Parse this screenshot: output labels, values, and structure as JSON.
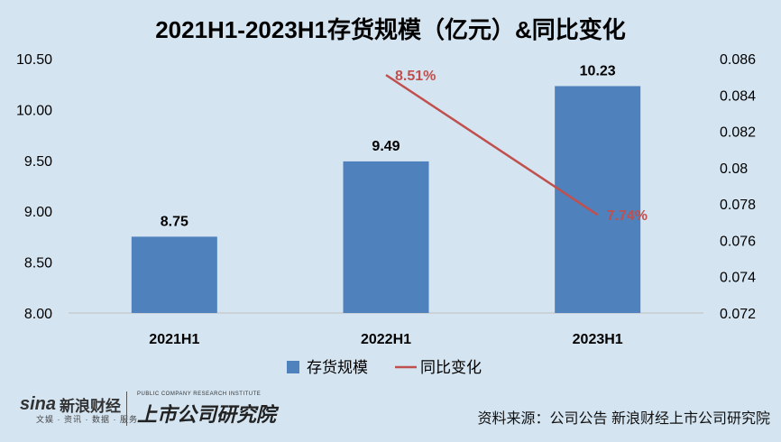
{
  "chart_data": {
    "type": "bar",
    "title": "2021H1-2023H1存货规模（亿元）&同比变化",
    "categories": [
      "2021H1",
      "2022H1",
      "2023H1"
    ],
    "series": [
      {
        "name": "存货规模",
        "kind": "bar",
        "axis": "left",
        "values": [
          8.75,
          9.49,
          10.23
        ],
        "labels": [
          "8.75",
          "9.49",
          "10.23"
        ],
        "color": "#4f81bd"
      },
      {
        "name": "同比变化",
        "kind": "line",
        "axis": "right",
        "values": [
          null,
          0.0851,
          0.0774
        ],
        "labels": [
          "",
          "8.51%",
          "7.74%"
        ],
        "color": "#c0504d"
      }
    ],
    "y_left": {
      "min": 8.0,
      "max": 10.5,
      "ticks": [
        "8.00",
        "8.50",
        "9.00",
        "9.50",
        "10.00",
        "10.50"
      ]
    },
    "y_right": {
      "min": 0.072,
      "max": 0.086,
      "ticks": [
        "0.072",
        "0.074",
        "0.076",
        "0.078",
        "0.08",
        "0.082",
        "0.084",
        "0.086"
      ]
    },
    "grid": false,
    "legend_position": "bottom"
  },
  "footer": {
    "brand_logo": "sina",
    "brand_name": "新浪财经",
    "brand_sub": "文娱 · 资讯 · 数据 · 服务",
    "institute_en": "PUBLIC COMPANY RESEARCH INSTITUTE",
    "institute_cn": "上市公司研究院",
    "source": "资料来源：公司公告 新浪财经上市公司研究院"
  }
}
